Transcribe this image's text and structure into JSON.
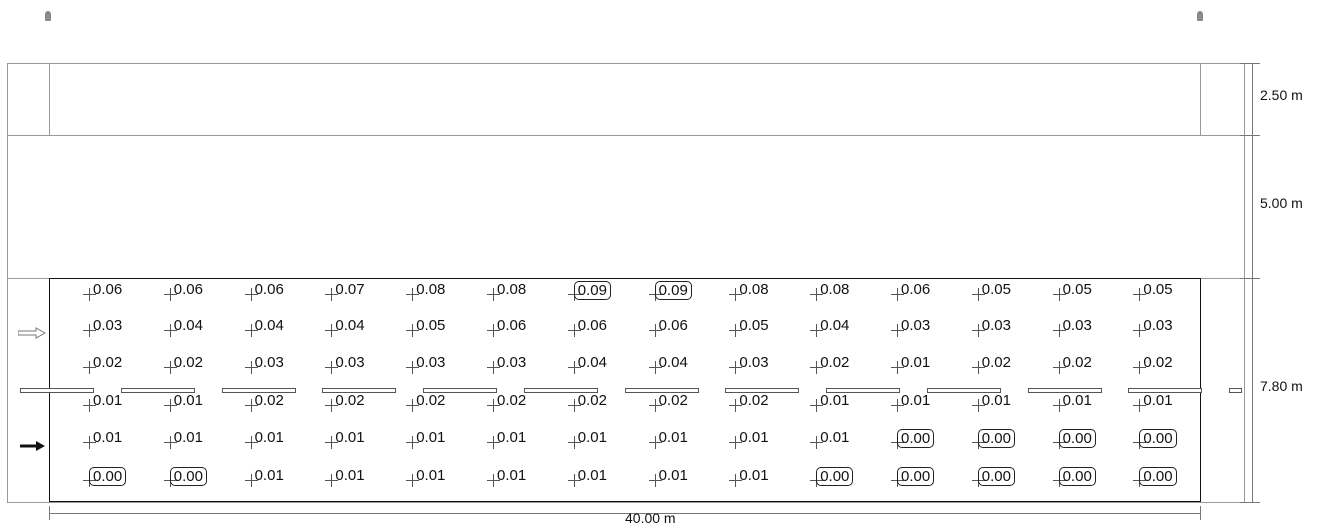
{
  "dimensions": {
    "width_label": "40.00 m",
    "heights": [
      "2.50 m",
      "5.00 m",
      "7.80 m"
    ]
  },
  "grid": {
    "rows": [
      [
        "0.06",
        "0.06",
        "0.06",
        "0.07",
        "0.08",
        "0.08",
        "0.09",
        "0.09",
        "0.08",
        "0.08",
        "0.06",
        "0.05",
        "0.05",
        "0.05"
      ],
      [
        "0.03",
        "0.04",
        "0.04",
        "0.04",
        "0.05",
        "0.06",
        "0.06",
        "0.06",
        "0.05",
        "0.04",
        "0.03",
        "0.03",
        "0.03",
        "0.03"
      ],
      [
        "0.02",
        "0.02",
        "0.03",
        "0.03",
        "0.03",
        "0.03",
        "0.04",
        "0.04",
        "0.03",
        "0.02",
        "0.01",
        "0.02",
        "0.02",
        "0.02"
      ],
      [
        "0.01",
        "0.01",
        "0.02",
        "0.02",
        "0.02",
        "0.02",
        "0.02",
        "0.02",
        "0.02",
        "0.01",
        "0.01",
        "0.01",
        "0.01",
        "0.01"
      ],
      [
        "0.01",
        "0.01",
        "0.01",
        "0.01",
        "0.01",
        "0.01",
        "0.01",
        "0.01",
        "0.01",
        "0.01",
        "0.00",
        "0.00",
        "0.00",
        "0.00"
      ],
      [
        "0.00",
        "0.00",
        "0.01",
        "0.01",
        "0.01",
        "0.01",
        "0.01",
        "0.01",
        "0.01",
        "0.00",
        "0.00",
        "0.00",
        "0.00",
        "0.00"
      ]
    ],
    "boxed": [
      [
        false,
        false,
        false,
        false,
        false,
        false,
        true,
        true,
        false,
        false,
        false,
        false,
        false,
        false
      ],
      [
        false,
        false,
        false,
        false,
        false,
        false,
        false,
        false,
        false,
        false,
        false,
        false,
        false,
        false
      ],
      [
        false,
        false,
        false,
        false,
        false,
        false,
        false,
        false,
        false,
        false,
        false,
        false,
        false,
        false
      ],
      [
        false,
        false,
        false,
        false,
        false,
        false,
        false,
        false,
        false,
        false,
        false,
        false,
        false,
        false
      ],
      [
        false,
        false,
        false,
        false,
        false,
        false,
        false,
        false,
        false,
        false,
        true,
        true,
        true,
        true
      ],
      [
        true,
        true,
        false,
        false,
        false,
        false,
        false,
        false,
        false,
        true,
        true,
        true,
        true,
        true
      ]
    ]
  },
  "icons": {
    "observer_arrow": "hollow-arrow-icon",
    "travel_arrow": "solid-arrow-icon",
    "pole": "pole-icon"
  }
}
